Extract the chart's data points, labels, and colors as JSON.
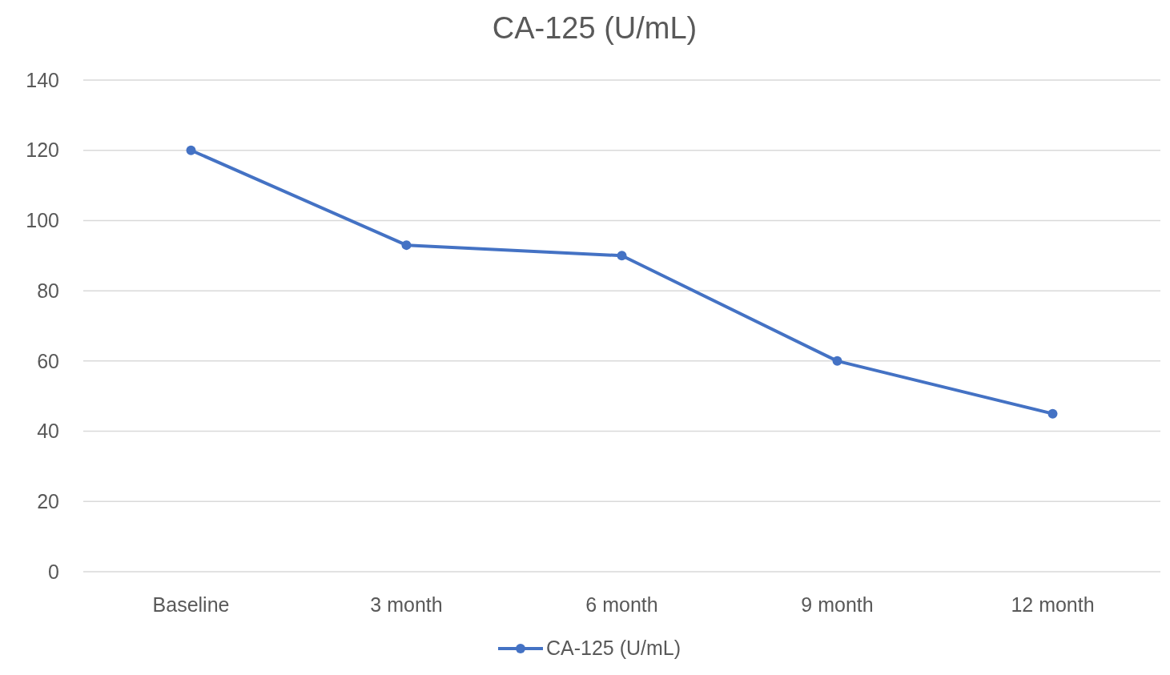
{
  "chart_data": {
    "type": "line",
    "title": "CA-125 (U/mL)",
    "categories": [
      "Baseline",
      "3 month",
      "6 month",
      "9 month",
      "12 month"
    ],
    "series": [
      {
        "name": "CA-125 (U/mL)",
        "color": "#4472c4",
        "values": [
          120,
          93,
          90,
          60,
          45
        ]
      }
    ],
    "ylim": [
      0,
      140
    ],
    "yticks": [
      0,
      20,
      40,
      60,
      80,
      100,
      120,
      140
    ],
    "grid": "y",
    "legend": "bottom",
    "marker": "circle",
    "line_style": "solid"
  }
}
